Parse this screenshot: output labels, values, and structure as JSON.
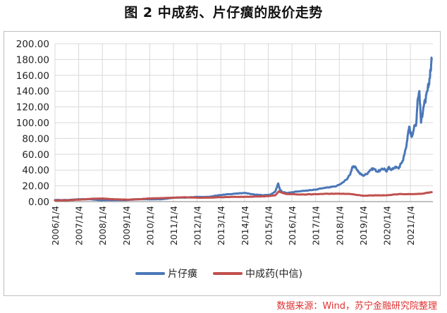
{
  "title": "图 2  中成药、片仔癀的股价走势",
  "source": "数据来源：Wind，苏宁金融研究院整理",
  "colors": {
    "pianzaihuang": "#4a77b8",
    "zhongchengyao": "#c0504d",
    "grid": "#d9d9d9",
    "axis": "#808080"
  },
  "chart_data": {
    "type": "line",
    "ylim": [
      0,
      200
    ],
    "yticks": [
      "0.00",
      "20.00",
      "40.00",
      "60.00",
      "80.00",
      "100.00",
      "120.00",
      "140.00",
      "160.00",
      "180.00",
      "200.00"
    ],
    "xlim": [
      2006.0,
      2021.95
    ],
    "xticks": [
      "2006/1/4",
      "2007/1/4",
      "2008/1/4",
      "2009/1/4",
      "2010/1/4",
      "2011/1/4",
      "2012/1/4",
      "2013/1/4",
      "2014/1/4",
      "2015/1/4",
      "2016/1/4",
      "2017/1/4",
      "2018/1/4",
      "2019/1/4",
      "2020/1/4",
      "2021/1/4"
    ],
    "legend_position": "bottom",
    "grid": true,
    "series": [
      {
        "name": "片仔癀",
        "x": [
          2006.0,
          2006.5,
          2007.0,
          2007.5,
          2007.9,
          2008.3,
          2008.9,
          2009.5,
          2010.0,
          2010.5,
          2011.0,
          2011.5,
          2012.0,
          2012.5,
          2012.9,
          2013.2,
          2013.6,
          2014.0,
          2014.4,
          2014.8,
          2015.1,
          2015.3,
          2015.42,
          2015.5,
          2015.6,
          2015.8,
          2016.0,
          2016.3,
          2016.6,
          2017.0,
          2017.3,
          2017.6,
          2017.9,
          2018.1,
          2018.3,
          2018.45,
          2018.55,
          2018.7,
          2018.85,
          2019.0,
          2019.15,
          2019.3,
          2019.45,
          2019.6,
          2019.75,
          2019.9,
          2020.0,
          2020.1,
          2020.2,
          2020.35,
          2020.5,
          2020.6,
          2020.68,
          2020.75,
          2020.85,
          2020.95,
          2021.05,
          2021.15,
          2021.25,
          2021.3,
          2021.38,
          2021.45,
          2021.55,
          2021.65,
          2021.72,
          2021.78,
          2021.85,
          2021.9
        ],
        "values": [
          2,
          2,
          3,
          3,
          2,
          2,
          2,
          3,
          3,
          3,
          5,
          5,
          6,
          6,
          8,
          9,
          10,
          11,
          9,
          8,
          9,
          13,
          23,
          15,
          12,
          11,
          12,
          13,
          14,
          15,
          17,
          18,
          20,
          23,
          28,
          34,
          44,
          43,
          36,
          33,
          35,
          40,
          42,
          38,
          40,
          42,
          38,
          44,
          40,
          44,
          42,
          48,
          52,
          60,
          75,
          95,
          82,
          93,
          100,
          128,
          140,
          100,
          120,
          130,
          140,
          150,
          165,
          180
        ]
      },
      {
        "name": "中成药(中信)",
        "x": [
          2006.0,
          2006.5,
          2007.0,
          2007.5,
          2008.0,
          2008.5,
          2009.0,
          2009.5,
          2010.0,
          2010.5,
          2011.0,
          2011.5,
          2012.0,
          2012.5,
          2013.0,
          2013.5,
          2014.0,
          2014.5,
          2015.0,
          2015.3,
          2015.45,
          2015.6,
          2015.8,
          2016.0,
          2016.5,
          2017.0,
          2017.5,
          2018.0,
          2018.5,
          2019.0,
          2019.5,
          2020.0,
          2020.5,
          2021.0,
          2021.5,
          2021.9
        ],
        "values": [
          1.5,
          1.8,
          2.5,
          3.5,
          4.0,
          3.0,
          2.5,
          3.0,
          4.0,
          4.5,
          5.0,
          5.5,
          5.0,
          5.0,
          5.5,
          6.0,
          6.0,
          6.5,
          7.0,
          8.0,
          13.0,
          11.0,
          9.5,
          9.5,
          9.0,
          9.5,
          10.0,
          10.0,
          9.5,
          7.5,
          8.0,
          8.0,
          9.5,
          9.5,
          10.0,
          12.0
        ]
      }
    ]
  }
}
